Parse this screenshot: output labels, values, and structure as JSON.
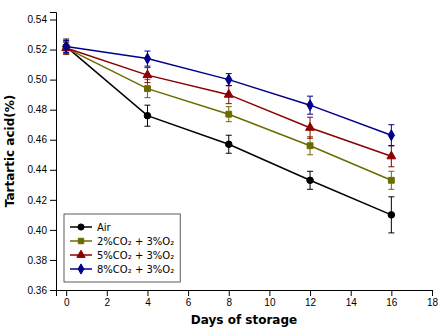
{
  "chart_data": {
    "type": "line",
    "x": [
      0,
      4,
      8,
      12,
      16
    ],
    "series": [
      {
        "name": "Air",
        "color": "#000000",
        "marker": "circle",
        "values": [
          0.522,
          0.476,
          0.457,
          0.433,
          0.41
        ],
        "errors": [
          0.005,
          0.007,
          0.006,
          0.006,
          0.012
        ]
      },
      {
        "name": "2%CO₂ + 3%O₂",
        "color": "#6B6B00",
        "marker": "square",
        "values": [
          0.521,
          0.494,
          0.477,
          0.456,
          0.433
        ],
        "errors": [
          0.004,
          0.006,
          0.005,
          0.006,
          0.006
        ]
      },
      {
        "name": "5%CO₂ + 3%O₂",
        "color": "#8B0000",
        "marker": "triangle",
        "values": [
          0.521,
          0.503,
          0.49,
          0.468,
          0.449
        ],
        "errors": [
          0.004,
          0.005,
          0.006,
          0.007,
          0.007
        ]
      },
      {
        "name": "8%CO₂ + 3%O₂",
        "color": "#00008B",
        "marker": "diamond",
        "values": [
          0.522,
          0.514,
          0.5,
          0.483,
          0.463
        ],
        "errors": [
          0.004,
          0.005,
          0.004,
          0.006,
          0.007
        ]
      }
    ],
    "xlabel": "Days of storage",
    "ylabel": "Tartartic acid(%)",
    "xlim": [
      -0.5,
      18
    ],
    "ylim": [
      0.36,
      0.545
    ],
    "xticks": [
      0,
      2,
      4,
      6,
      8,
      10,
      12,
      14,
      16,
      18
    ],
    "yticks": [
      0.36,
      0.38,
      {
        "value": 0.4,
        "label": "0.40"
      },
      0.42,
      0.44,
      0.46,
      0.48,
      {
        "value": 0.5,
        "label": "0.50"
      },
      0.52,
      0.54
    ],
    "line_style": "solid",
    "legend": "lower left",
    "grid": false
  }
}
